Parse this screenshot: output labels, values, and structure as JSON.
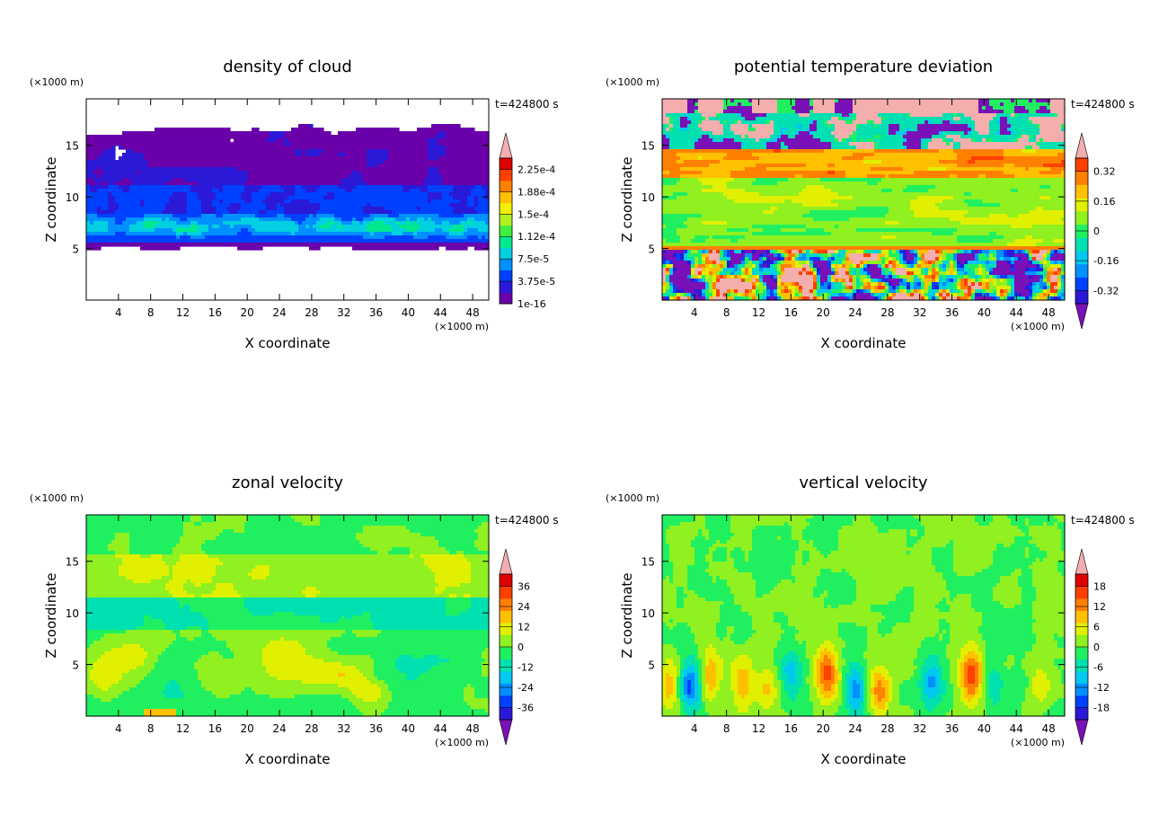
{
  "time_label": "t=424800 s",
  "scale_label": "(×1000 m)",
  "xlabel": "X coordinate",
  "ylabel": "Z coordinate",
  "chart_data": [
    {
      "id": "cloud",
      "type": "heatmap",
      "title": "density of cloud",
      "xlim": [
        0,
        50
      ],
      "ylim": [
        0,
        19.5
      ],
      "xticks": [
        4,
        8,
        12,
        16,
        20,
        24,
        28,
        32,
        36,
        40,
        44,
        48
      ],
      "yticks": [
        5,
        10,
        15
      ],
      "colorbar": {
        "labels": [
          "1e-16",
          "3.75e-5",
          "7.5e-5",
          "1.12e-4",
          "1.5e-4",
          "1.88e-4",
          "2.25e-4"
        ],
        "colors": [
          "#6a00aa",
          "#2a1ad8",
          "#0040ff",
          "#0090ff",
          "#00d0e0",
          "#00e890",
          "#40f040",
          "#b0f020",
          "#f0f000",
          "#ffc000",
          "#ff8000",
          "#ff4000",
          "#e00000"
        ],
        "top_arrow": "#f4aeae",
        "bottom_arrow": null
      },
      "field": "cloud"
    },
    {
      "id": "theta",
      "type": "heatmap",
      "title": "potential temperature deviation",
      "xlim": [
        0,
        50
      ],
      "ylim": [
        0,
        19.5
      ],
      "xticks": [
        4,
        8,
        12,
        16,
        20,
        24,
        28,
        32,
        36,
        40,
        44,
        48
      ],
      "yticks": [
        5,
        10,
        15
      ],
      "colorbar": {
        "labels": [
          "-0.32",
          "-0.16",
          "0",
          "0.16",
          "0.32"
        ],
        "colors": [
          "#2a1ad8",
          "#0040ff",
          "#0090ff",
          "#00c8f0",
          "#00e0b0",
          "#20f060",
          "#90f020",
          "#e0f000",
          "#ffc000",
          "#ff8000",
          "#ff4000"
        ],
        "top_arrow": "#f4aeae",
        "bottom_arrow": "#7a10b8"
      },
      "field": "theta"
    },
    {
      "id": "zonal",
      "type": "heatmap",
      "title": "zonal velocity",
      "xlim": [
        0,
        50
      ],
      "ylim": [
        0,
        19.5
      ],
      "xticks": [
        4,
        8,
        12,
        16,
        20,
        24,
        28,
        32,
        36,
        40,
        44,
        48
      ],
      "yticks": [
        5,
        10,
        15
      ],
      "colorbar": {
        "labels": [
          "-36",
          "-24",
          "-12",
          "0",
          "12",
          "24",
          "36"
        ],
        "colors": [
          "#2a1ad8",
          "#0040ff",
          "#0090ff",
          "#00c8f0",
          "#00e0b0",
          "#20f060",
          "#90f020",
          "#e0f000",
          "#ffc000",
          "#ff8000",
          "#ff4000",
          "#e00000"
        ],
        "top_arrow": "#f4aeae",
        "bottom_arrow": "#7a10b8"
      },
      "field": "zonal"
    },
    {
      "id": "vertical",
      "type": "heatmap",
      "title": "vertical velocity",
      "xlim": [
        0,
        50
      ],
      "ylim": [
        0,
        19.5
      ],
      "xticks": [
        4,
        8,
        12,
        16,
        20,
        24,
        28,
        32,
        36,
        40,
        44,
        48
      ],
      "yticks": [
        5,
        10,
        15
      ],
      "colorbar": {
        "labels": [
          "-18",
          "-12",
          "-6",
          "0",
          "6",
          "12",
          "18"
        ],
        "colors": [
          "#2a1ad8",
          "#0040ff",
          "#0090ff",
          "#00c8f0",
          "#00e0b0",
          "#20f060",
          "#90f020",
          "#e0f000",
          "#ffc000",
          "#ff8000",
          "#ff4000",
          "#e00000"
        ],
        "top_arrow": "#f4aeae",
        "bottom_arrow": "#7a10b8"
      },
      "field": "vertical"
    }
  ]
}
